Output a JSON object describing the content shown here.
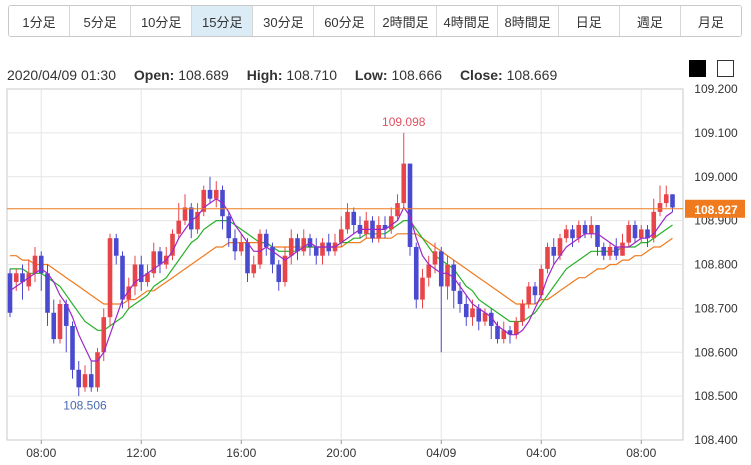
{
  "timeframes": [
    {
      "label": "1分足",
      "active": false
    },
    {
      "label": "5分足",
      "active": false
    },
    {
      "label": "10分足",
      "active": false
    },
    {
      "label": "15分足",
      "active": true
    },
    {
      "label": "30分足",
      "active": false
    },
    {
      "label": "60分足",
      "active": false
    },
    {
      "label": "2時間足",
      "active": false
    },
    {
      "label": "4時間足",
      "active": false
    },
    {
      "label": "8時間足",
      "active": false
    },
    {
      "label": "日足",
      "active": false
    },
    {
      "label": "週足",
      "active": false
    },
    {
      "label": "月足",
      "active": false
    }
  ],
  "ohlc": {
    "datetime": "2020/04/09 01:30",
    "open_label": "Open:",
    "open": "108.689",
    "high_label": "High:",
    "high": "108.710",
    "low_label": "Low:",
    "low": "108.666",
    "close_label": "Close:",
    "close": "108.669"
  },
  "theme_toggle": [
    "dark-theme",
    "light-theme"
  ],
  "colors": {
    "up": "#e8454a",
    "down": "#4a4ad0",
    "ma_short": "#9b27c9",
    "ma_mid": "#27b027",
    "ma_long": "#f07a1e",
    "current_price": "#f07a1e",
    "grid": "#e6e6e6",
    "border": "#c8c8c8"
  },
  "chart_data": {
    "type": "candlestick",
    "ylim": [
      108.4,
      109.2
    ],
    "y_ticks": [
      "108.400",
      "108.500",
      "108.600",
      "108.700",
      "108.800",
      "108.900",
      "109.000",
      "109.100",
      "109.200"
    ],
    "x_ticks": [
      {
        "label": "08:00",
        "index": 5
      },
      {
        "label": "12:00",
        "index": 21
      },
      {
        "label": "16:00",
        "index": 37
      },
      {
        "label": "20:00",
        "index": 53
      },
      {
        "label": "04/09",
        "index": 69
      },
      {
        "label": "04:00",
        "index": 85
      },
      {
        "label": "08:00",
        "index": 101
      }
    ],
    "current_price": "108.927",
    "annotations": [
      {
        "text": "109.098",
        "index": 63,
        "value": 109.098,
        "position": "above",
        "color": "#e05060"
      },
      {
        "text": "108.506",
        "index": 12,
        "value": 108.506,
        "position": "below",
        "color": "#4a6ab0"
      }
    ],
    "candles": [
      [
        108.78,
        108.69,
        108.79,
        108.68
      ],
      [
        108.76,
        108.78,
        108.79,
        108.74
      ],
      [
        108.78,
        108.76,
        108.8,
        108.72
      ],
      [
        108.75,
        108.78,
        108.81,
        108.74
      ],
      [
        108.78,
        108.82,
        108.84,
        108.76
      ],
      [
        108.82,
        108.78,
        108.83,
        108.74
      ],
      [
        108.78,
        108.69,
        108.8,
        108.66
      ],
      [
        108.69,
        108.63,
        108.72,
        108.62
      ],
      [
        108.63,
        108.71,
        108.72,
        108.62
      ],
      [
        108.71,
        108.66,
        108.72,
        108.6
      ],
      [
        108.66,
        108.56,
        108.67,
        108.54
      ],
      [
        108.56,
        108.52,
        108.58,
        108.5
      ],
      [
        108.52,
        108.55,
        108.57,
        108.51
      ],
      [
        108.55,
        108.52,
        108.58,
        108.51
      ],
      [
        108.52,
        108.6,
        108.61,
        108.51
      ],
      [
        108.6,
        108.68,
        108.7,
        108.58
      ],
      [
        108.68,
        108.86,
        108.87,
        108.66
      ],
      [
        108.86,
        108.82,
        108.87,
        108.8
      ],
      [
        108.82,
        108.72,
        108.83,
        108.7
      ],
      [
        108.72,
        108.75,
        108.77,
        108.7
      ],
      [
        108.75,
        108.8,
        108.82,
        108.73
      ],
      [
        108.8,
        108.76,
        108.82,
        108.74
      ],
      [
        108.76,
        108.78,
        108.8,
        108.75
      ],
      [
        108.78,
        108.83,
        108.85,
        108.77
      ],
      [
        108.83,
        108.8,
        108.84,
        108.78
      ],
      [
        108.8,
        108.82,
        108.84,
        108.79
      ],
      [
        108.82,
        108.87,
        108.88,
        108.81
      ],
      [
        108.87,
        108.9,
        108.94,
        108.86
      ],
      [
        108.9,
        108.93,
        108.96,
        108.89
      ],
      [
        108.93,
        108.88,
        108.94,
        108.86
      ],
      [
        108.88,
        108.92,
        108.94,
        108.87
      ],
      [
        108.92,
        108.97,
        108.98,
        108.91
      ],
      [
        108.97,
        108.95,
        109.0,
        108.94
      ],
      [
        108.95,
        108.97,
        108.99,
        108.93
      ],
      [
        108.97,
        108.91,
        108.98,
        108.88
      ],
      [
        108.91,
        108.86,
        108.92,
        108.84
      ],
      [
        108.86,
        108.83,
        108.88,
        108.81
      ],
      [
        108.83,
        108.85,
        108.87,
        108.82
      ],
      [
        108.85,
        108.78,
        108.86,
        108.76
      ],
      [
        108.78,
        108.8,
        108.82,
        108.77
      ],
      [
        108.8,
        108.87,
        108.88,
        108.79
      ],
      [
        108.87,
        108.84,
        108.88,
        108.82
      ],
      [
        108.84,
        108.8,
        108.85,
        108.78
      ],
      [
        108.8,
        108.76,
        108.81,
        108.74
      ],
      [
        108.76,
        108.82,
        108.84,
        108.75
      ],
      [
        108.82,
        108.86,
        108.88,
        108.8
      ],
      [
        108.86,
        108.83,
        108.87,
        108.81
      ],
      [
        108.83,
        108.86,
        108.88,
        108.82
      ],
      [
        108.86,
        108.84,
        108.87,
        108.82
      ],
      [
        108.84,
        108.82,
        108.86,
        108.8
      ],
      [
        108.82,
        108.85,
        108.86,
        108.8
      ],
      [
        108.85,
        108.83,
        108.87,
        108.82
      ],
      [
        108.83,
        108.85,
        108.87,
        108.82
      ],
      [
        108.85,
        108.88,
        108.91,
        108.84
      ],
      [
        108.88,
        108.92,
        108.94,
        108.87
      ],
      [
        108.92,
        108.89,
        108.93,
        108.87
      ],
      [
        108.89,
        108.87,
        108.91,
        108.86
      ],
      [
        108.87,
        108.9,
        108.92,
        108.86
      ],
      [
        108.9,
        108.86,
        108.91,
        108.85
      ],
      [
        108.86,
        108.89,
        108.91,
        108.85
      ],
      [
        108.89,
        108.88,
        108.91,
        108.86
      ],
      [
        108.88,
        108.91,
        108.93,
        108.87
      ],
      [
        108.91,
        108.94,
        108.96,
        108.9
      ],
      [
        108.94,
        109.03,
        109.1,
        108.93
      ],
      [
        109.03,
        108.84,
        109.03,
        108.82
      ],
      [
        108.84,
        108.72,
        108.85,
        108.7
      ],
      [
        108.72,
        108.77,
        108.79,
        108.7
      ],
      [
        108.77,
        108.8,
        108.82,
        108.75
      ],
      [
        108.8,
        108.83,
        108.85,
        108.78
      ],
      [
        108.83,
        108.75,
        108.84,
        108.6
      ],
      [
        108.75,
        108.8,
        108.82,
        108.72
      ],
      [
        108.8,
        108.74,
        108.81,
        108.7
      ],
      [
        108.74,
        108.71,
        108.76,
        108.69
      ],
      [
        108.71,
        108.68,
        108.73,
        108.66
      ],
      [
        108.68,
        108.7,
        108.72,
        108.66
      ],
      [
        108.7,
        108.67,
        108.71,
        108.65
      ],
      [
        108.67,
        108.69,
        108.7,
        108.66
      ],
      [
        108.69,
        108.66,
        108.7,
        108.63
      ],
      [
        108.66,
        108.63,
        108.67,
        108.62
      ],
      [
        108.63,
        108.65,
        108.67,
        108.62
      ],
      [
        108.65,
        108.64,
        108.66,
        108.62
      ],
      [
        108.64,
        108.67,
        108.68,
        108.63
      ],
      [
        108.67,
        108.71,
        108.72,
        108.66
      ],
      [
        108.71,
        108.75,
        108.76,
        108.7
      ],
      [
        108.75,
        108.73,
        108.76,
        108.71
      ],
      [
        108.73,
        108.79,
        108.8,
        108.72
      ],
      [
        108.79,
        108.84,
        108.85,
        108.78
      ],
      [
        108.84,
        108.82,
        108.86,
        108.8
      ],
      [
        108.82,
        108.86,
        108.87,
        108.81
      ],
      [
        108.86,
        108.88,
        108.89,
        108.85
      ],
      [
        108.88,
        108.86,
        108.89,
        108.84
      ],
      [
        108.86,
        108.89,
        108.9,
        108.85
      ],
      [
        108.89,
        108.87,
        108.9,
        108.86
      ],
      [
        108.87,
        108.89,
        108.91,
        108.86
      ],
      [
        108.89,
        108.84,
        108.89,
        108.82
      ],
      [
        108.84,
        108.82,
        108.85,
        108.81
      ],
      [
        108.82,
        108.84,
        108.85,
        108.81
      ],
      [
        108.84,
        108.82,
        108.86,
        108.81
      ],
      [
        108.82,
        108.85,
        108.87,
        108.82
      ],
      [
        108.85,
        108.89,
        108.9,
        108.84
      ],
      [
        108.89,
        108.86,
        108.9,
        108.85
      ],
      [
        108.86,
        108.88,
        108.89,
        108.85
      ],
      [
        108.88,
        108.86,
        108.89,
        108.84
      ],
      [
        108.86,
        108.92,
        108.95,
        108.85
      ],
      [
        108.92,
        108.94,
        108.98,
        108.91
      ],
      [
        108.94,
        108.96,
        108.98,
        108.93
      ],
      [
        108.96,
        108.93,
        108.96,
        108.92
      ]
    ],
    "ma_short": [
      108.74,
      108.75,
      108.76,
      108.77,
      108.78,
      108.79,
      108.78,
      108.76,
      108.73,
      108.71,
      108.68,
      108.64,
      108.61,
      108.58,
      108.58,
      108.6,
      108.64,
      108.68,
      108.72,
      108.74,
      108.76,
      108.77,
      108.78,
      108.79,
      108.8,
      108.81,
      108.83,
      108.86,
      108.88,
      108.9,
      108.91,
      108.93,
      108.94,
      108.95,
      108.94,
      108.92,
      108.89,
      108.87,
      108.85,
      108.83,
      108.83,
      108.84,
      108.83,
      108.82,
      108.81,
      108.82,
      108.83,
      108.84,
      108.85,
      108.84,
      108.84,
      108.84,
      108.84,
      108.85,
      108.86,
      108.87,
      108.88,
      108.88,
      108.88,
      108.88,
      108.88,
      108.89,
      108.9,
      108.93,
      108.91,
      108.86,
      108.82,
      108.8,
      108.79,
      108.78,
      108.78,
      108.77,
      108.75,
      108.73,
      108.71,
      108.7,
      108.69,
      108.68,
      108.66,
      108.65,
      108.64,
      108.64,
      108.65,
      108.67,
      108.7,
      108.73,
      108.77,
      108.8,
      108.82,
      108.84,
      108.85,
      108.86,
      108.87,
      108.87,
      108.87,
      108.86,
      108.85,
      108.84,
      108.84,
      108.84,
      108.85,
      108.86,
      108.86,
      108.87,
      108.89,
      108.91,
      108.92
    ],
    "ma_mid": [
      108.79,
      108.79,
      108.79,
      108.78,
      108.78,
      108.78,
      108.77,
      108.76,
      108.75,
      108.73,
      108.71,
      108.69,
      108.67,
      108.66,
      108.65,
      108.65,
      108.66,
      108.67,
      108.68,
      108.7,
      108.71,
      108.72,
      108.73,
      108.75,
      108.76,
      108.77,
      108.79,
      108.81,
      108.83,
      108.85,
      108.86,
      108.88,
      108.89,
      108.9,
      108.9,
      108.9,
      108.89,
      108.88,
      108.87,
      108.86,
      108.85,
      108.85,
      108.84,
      108.83,
      108.83,
      108.83,
      108.83,
      108.84,
      108.84,
      108.84,
      108.84,
      108.84,
      108.84,
      108.85,
      108.85,
      108.86,
      108.86,
      108.87,
      108.87,
      108.87,
      108.87,
      108.88,
      108.89,
      108.9,
      108.9,
      108.88,
      108.86,
      108.84,
      108.82,
      108.81,
      108.8,
      108.79,
      108.77,
      108.75,
      108.74,
      108.72,
      108.71,
      108.7,
      108.69,
      108.68,
      108.67,
      108.67,
      108.67,
      108.68,
      108.69,
      108.71,
      108.73,
      108.75,
      108.77,
      108.79,
      108.8,
      108.81,
      108.82,
      108.83,
      108.83,
      108.83,
      108.83,
      108.83,
      108.84,
      108.84,
      108.84,
      108.85,
      108.85,
      108.86,
      108.87,
      108.88,
      108.89
    ],
    "ma_long": [
      108.82,
      108.82,
      108.81,
      108.81,
      108.8,
      108.8,
      108.8,
      108.79,
      108.78,
      108.77,
      108.76,
      108.75,
      108.74,
      108.73,
      108.72,
      108.71,
      108.71,
      108.71,
      108.71,
      108.72,
      108.72,
      108.73,
      108.74,
      108.74,
      108.75,
      108.76,
      108.77,
      108.78,
      108.79,
      108.8,
      108.81,
      108.82,
      108.83,
      108.84,
      108.84,
      108.85,
      108.85,
      108.85,
      108.85,
      108.85,
      108.85,
      108.85,
      108.84,
      108.84,
      108.84,
      108.84,
      108.84,
      108.84,
      108.84,
      108.84,
      108.84,
      108.84,
      108.84,
      108.84,
      108.85,
      108.85,
      108.85,
      108.86,
      108.86,
      108.86,
      108.86,
      108.86,
      108.87,
      108.87,
      108.87,
      108.87,
      108.86,
      108.85,
      108.84,
      108.83,
      108.82,
      108.81,
      108.8,
      108.79,
      108.78,
      108.77,
      108.76,
      108.75,
      108.74,
      108.73,
      108.72,
      108.71,
      108.71,
      108.71,
      108.71,
      108.72,
      108.72,
      108.73,
      108.74,
      108.75,
      108.76,
      108.77,
      108.77,
      108.78,
      108.79,
      108.79,
      108.8,
      108.8,
      108.81,
      108.81,
      108.82,
      108.82,
      108.83,
      108.84,
      108.84,
      108.85,
      108.86
    ]
  }
}
